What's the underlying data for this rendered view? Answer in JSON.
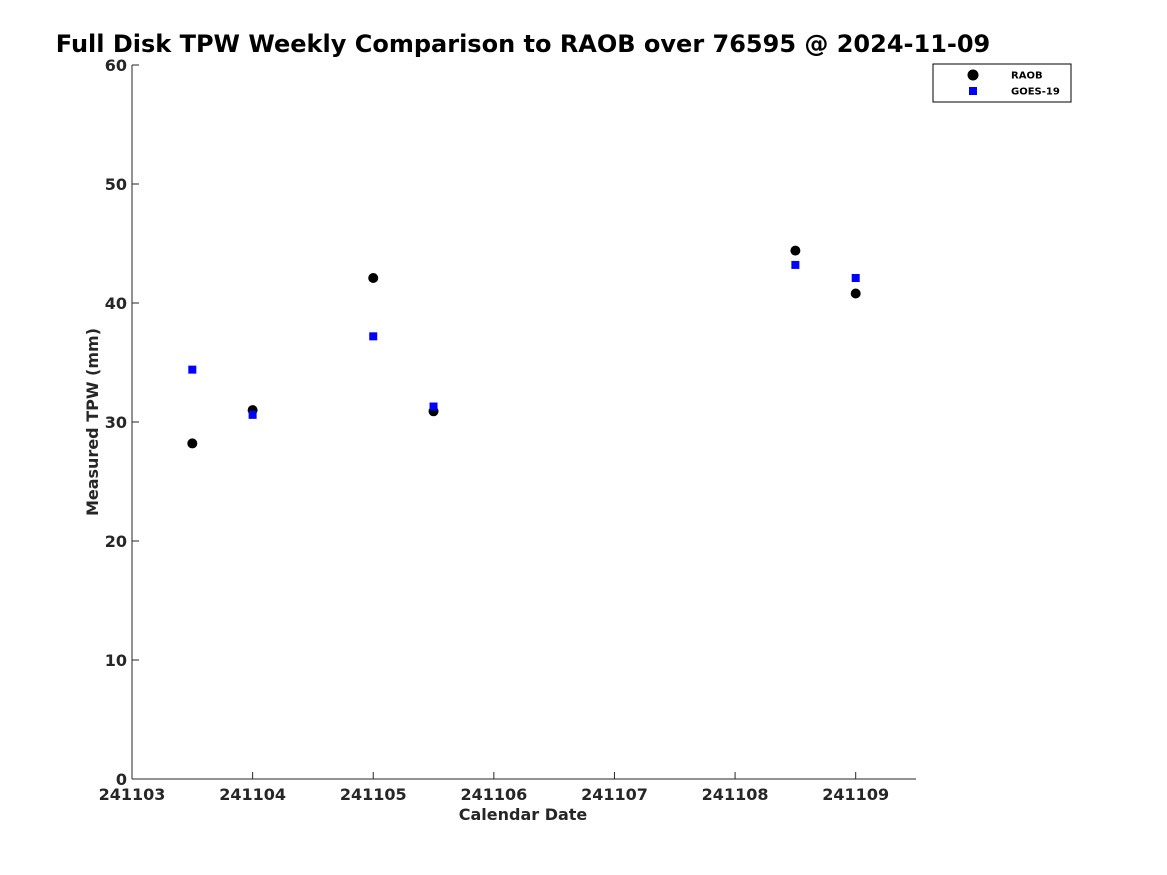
{
  "chart_data": {
    "type": "scatter",
    "title": "Full Disk TPW Weekly Comparison to RAOB over 76595 @ 2024-11-09",
    "xlabel": "Calendar Date",
    "ylabel": "Measured TPW (mm)",
    "xlim": [
      241103,
      241109.5
    ],
    "ylim": [
      0,
      60
    ],
    "x_ticks": [
      241103,
      241104,
      241105,
      241106,
      241107,
      241108,
      241109
    ],
    "x_tick_labels": [
      "241103",
      "241104",
      "241105",
      "241106",
      "241107",
      "241108",
      "241109"
    ],
    "y_ticks": [
      0,
      10,
      20,
      30,
      40,
      50,
      60
    ],
    "y_tick_labels": [
      "0",
      "10",
      "20",
      "30",
      "40",
      "50",
      "60"
    ],
    "grid": false,
    "legend_position": "top-right",
    "series": [
      {
        "name": "RAOB",
        "marker": "circle",
        "color": "#000000",
        "x": [
          241103.5,
          241104,
          241105,
          241105.5,
          241108.5,
          241109
        ],
        "y": [
          28.2,
          31.0,
          42.1,
          30.9,
          44.4,
          40.8
        ]
      },
      {
        "name": "GOES-19",
        "marker": "square",
        "color": "#0000ff",
        "x": [
          241103.5,
          241104,
          241105,
          241105.5,
          241108.5,
          241109
        ],
        "y": [
          34.4,
          30.6,
          37.2,
          31.3,
          43.2,
          42.1
        ]
      }
    ]
  }
}
